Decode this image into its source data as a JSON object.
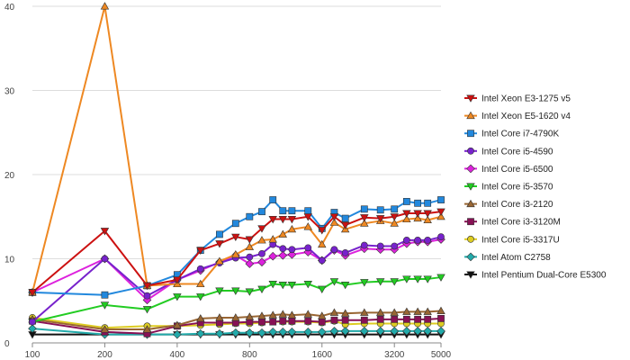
{
  "chart_data": {
    "type": "line",
    "x_scale": "log",
    "x": [
      100,
      200,
      300,
      400,
      500,
      600,
      700,
      800,
      900,
      1000,
      1100,
      1200,
      1400,
      1600,
      1800,
      2000,
      2400,
      2800,
      3200,
      3600,
      4000,
      4400,
      5000
    ],
    "x_ticks": [
      100,
      200,
      400,
      800,
      1600,
      3200,
      5000
    ],
    "x_tick_labels": [
      "100",
      "200",
      "400",
      "800",
      "1600",
      "3200",
      "5000"
    ],
    "ylim": [
      0,
      40
    ],
    "y_ticks": [
      0,
      10,
      20,
      30,
      40
    ],
    "y_tick_labels": [
      "0",
      "10",
      "20",
      "30",
      "40"
    ],
    "grid": "horizontal",
    "legend_position": "right",
    "series": [
      {
        "name": "Intel Xeon E3-1275 v5",
        "color": "#cc1111",
        "marker": "triangle-down",
        "values": [
          6.0,
          13.3,
          6.8,
          7.5,
          11.0,
          11.8,
          12.6,
          12.3,
          13.6,
          14.7,
          14.7,
          14.7,
          15.0,
          13.4,
          15.0,
          14.0,
          14.9,
          14.8,
          15.0,
          15.4,
          15.4,
          15.4,
          15.6
        ]
      },
      {
        "name": "Intel Xeon E5-1620 v4",
        "color": "#ee8822",
        "marker": "triangle-up",
        "values": [
          6.0,
          40.0,
          6.8,
          7.0,
          7.0,
          9.7,
          10.5,
          11.4,
          12.2,
          12.3,
          12.9,
          13.5,
          13.8,
          11.7,
          14.3,
          13.5,
          14.2,
          14.5,
          14.2,
          14.7,
          14.8,
          14.6,
          15.0
        ]
      },
      {
        "name": "Intel Core i7-4790K",
        "color": "#2288dd",
        "marker": "square",
        "values": [
          6.0,
          5.7,
          6.8,
          8.1,
          11.0,
          12.9,
          14.2,
          15.0,
          15.6,
          17.0,
          15.7,
          15.7,
          15.7,
          13.6,
          15.5,
          14.8,
          15.9,
          15.8,
          15.9,
          16.8,
          16.6,
          16.6,
          17.0
        ]
      },
      {
        "name": "Intel Core i5-4590",
        "color": "#7722cc",
        "marker": "circle",
        "values": [
          2.5,
          10.0,
          5.6,
          7.5,
          8.8,
          9.5,
          10.1,
          10.2,
          10.6,
          11.7,
          11.2,
          11.1,
          11.3,
          9.8,
          11.1,
          10.7,
          11.6,
          11.5,
          11.5,
          12.2,
          12.2,
          12.2,
          12.6
        ]
      },
      {
        "name": "Intel Core i5-6500",
        "color": "#dd22dd",
        "marker": "diamond",
        "values": [
          6.0,
          10.0,
          5.1,
          7.5,
          8.6,
          9.6,
          10.4,
          9.4,
          9.6,
          10.3,
          10.4,
          10.5,
          10.8,
          9.8,
          11.0,
          10.4,
          11.2,
          11.1,
          11.1,
          11.8,
          12.0,
          12.0,
          12.3
        ]
      },
      {
        "name": "Intel Core i5-3570",
        "color": "#22cc22",
        "marker": "triangle-down",
        "values": [
          2.5,
          4.5,
          4.0,
          5.5,
          5.5,
          6.2,
          6.2,
          6.1,
          6.4,
          7.0,
          6.9,
          6.9,
          7.0,
          6.4,
          7.3,
          6.9,
          7.2,
          7.3,
          7.3,
          7.6,
          7.6,
          7.6,
          7.8
        ]
      },
      {
        "name": "Intel Core i3-2120",
        "color": "#996633",
        "marker": "triangle-up",
        "values": [
          2.8,
          1.6,
          1.6,
          2.1,
          2.9,
          3.0,
          3.0,
          3.1,
          3.2,
          3.3,
          3.4,
          3.3,
          3.4,
          3.2,
          3.6,
          3.5,
          3.6,
          3.6,
          3.6,
          3.7,
          3.7,
          3.7,
          3.8
        ]
      },
      {
        "name": "Intel Core i3-3120M",
        "color": "#881155",
        "marker": "square",
        "values": [
          2.6,
          1.3,
          1.1,
          2.0,
          2.4,
          2.4,
          2.4,
          2.5,
          2.5,
          2.5,
          2.6,
          2.6,
          2.6,
          2.5,
          2.7,
          2.7,
          2.7,
          2.8,
          2.8,
          2.8,
          2.8,
          2.8,
          2.9
        ]
      },
      {
        "name": "Intel Core i5-3317U",
        "color": "#ddcc22",
        "marker": "circle",
        "values": [
          3.0,
          1.8,
          2.0,
          2.0,
          2.1,
          2.2,
          2.3,
          2.3,
          2.4,
          2.5,
          2.5,
          2.5,
          2.5,
          2.4,
          2.6,
          2.2,
          2.3,
          2.3,
          2.3,
          2.3,
          2.3,
          2.3,
          2.3
        ]
      },
      {
        "name": "Intel Atom C2758",
        "color": "#22aaaa",
        "marker": "diamond",
        "values": [
          1.7,
          1.0,
          1.0,
          1.0,
          1.1,
          1.1,
          1.2,
          1.2,
          1.2,
          1.3,
          1.3,
          1.3,
          1.3,
          1.3,
          1.4,
          1.4,
          1.4,
          1.4,
          1.4,
          1.4,
          1.4,
          1.4,
          1.4
        ]
      },
      {
        "name": "Intel Pentium Dual-Core E5300",
        "color": "#111111",
        "marker": "triangle-down",
        "values": [
          1.0,
          1.0,
          1.0,
          1.0,
          1.0,
          1.0,
          1.0,
          1.0,
          1.0,
          1.0,
          1.0,
          1.0,
          1.0,
          1.0,
          1.0,
          1.0,
          1.0,
          1.0,
          1.0,
          1.0,
          1.0,
          1.0,
          1.0
        ]
      }
    ]
  }
}
